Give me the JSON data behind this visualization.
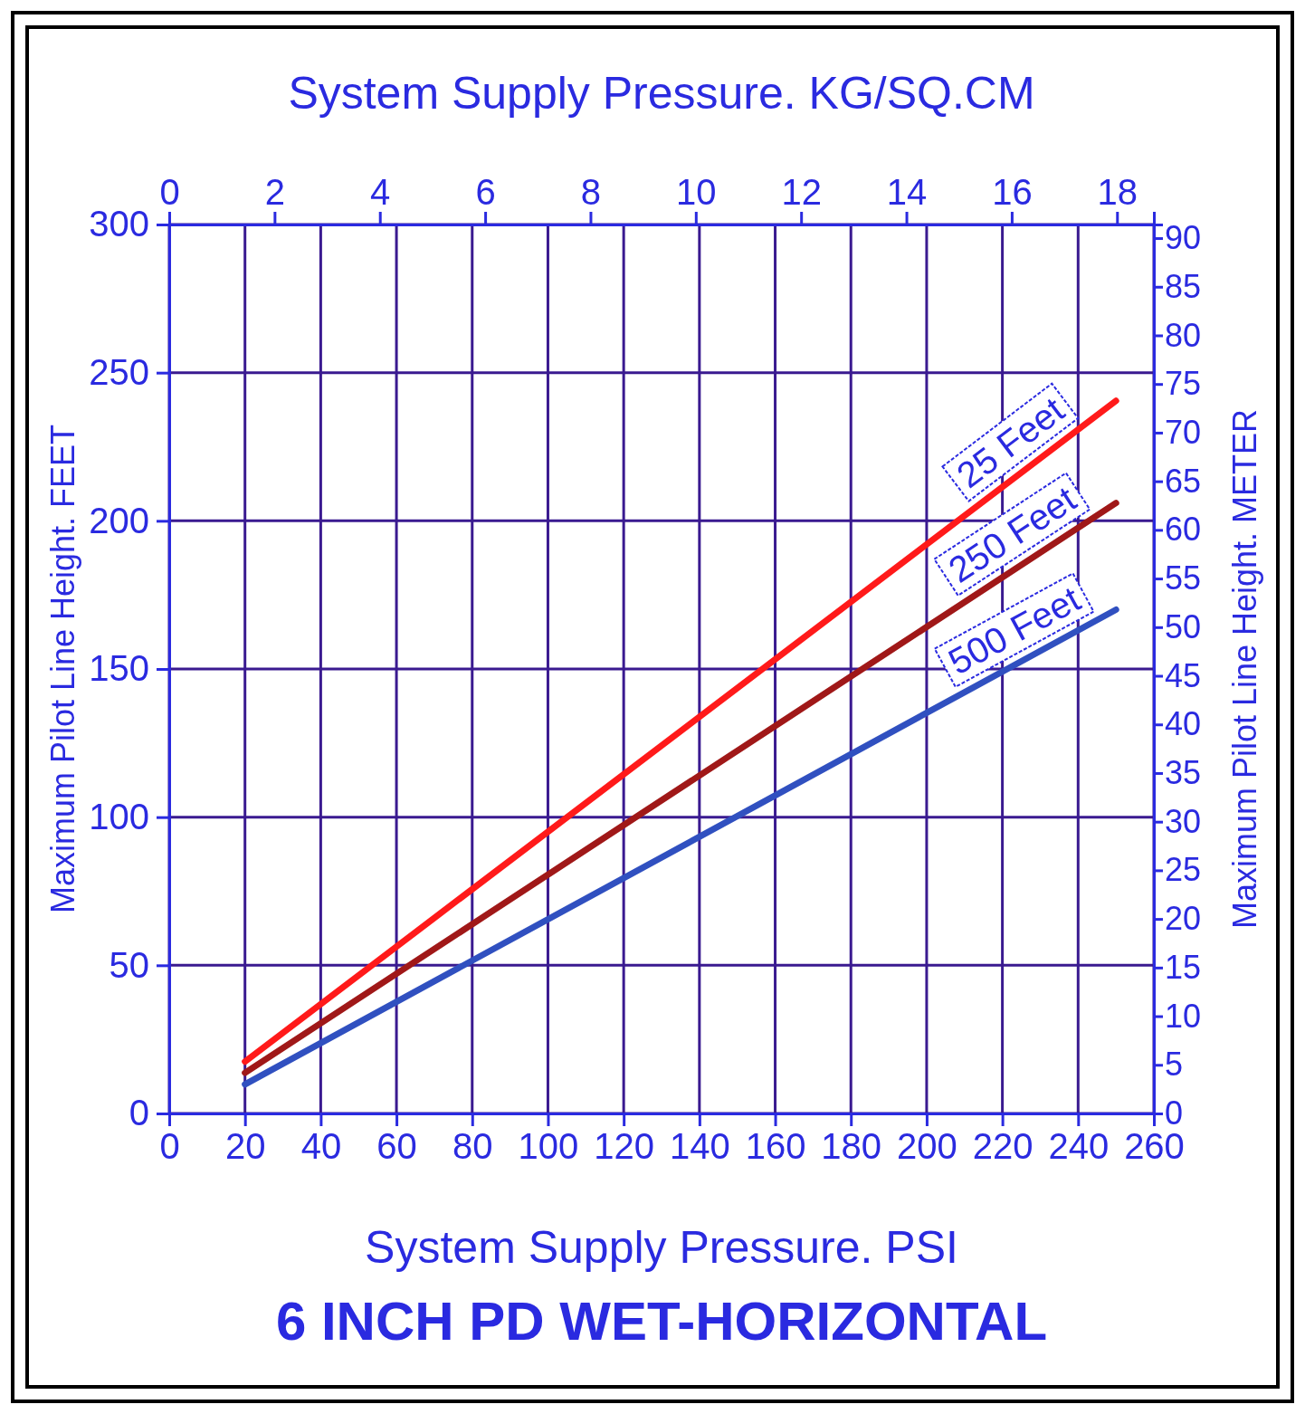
{
  "chart_data": {
    "type": "line",
    "title": "6 INCH PD WET-HORIZONTAL",
    "xlabel": "System Supply Pressure. PSI",
    "x2label": "System Supply Pressure. KG/SQ.CM",
    "ylabel": "Maximum Pilot Line Height. FEET",
    "y2label": "Maximum Pilot Line Height. METER",
    "xlim": [
      0,
      260
    ],
    "xticks": [
      0,
      20,
      40,
      60,
      80,
      100,
      120,
      140,
      160,
      180,
      200,
      220,
      240,
      260
    ],
    "x2lim": [
      0,
      18.7
    ],
    "x2ticks": [
      0,
      2,
      4,
      6,
      8,
      10,
      12,
      14,
      16,
      18
    ],
    "ylim": [
      0,
      300
    ],
    "yticks": [
      0,
      50,
      100,
      150,
      200,
      250,
      300
    ],
    "y2lim": [
      0,
      91.4
    ],
    "y2ticks": [
      0,
      5,
      10,
      15,
      20,
      25,
      30,
      35,
      40,
      45,
      50,
      55,
      60,
      65,
      70,
      75,
      80,
      85,
      90
    ],
    "grid": true,
    "legend": false,
    "marker": "none",
    "line_style": "solid",
    "x": [
      20,
      250
    ],
    "series": [
      {
        "name": "25 Feet",
        "color": "#ff1a1a",
        "values": [
          17.5,
          240.5
        ]
      },
      {
        "name": "250 Feet",
        "color": "#a01818",
        "values": [
          13.7,
          206
        ]
      },
      {
        "name": "500 Feet",
        "color": "#3050c0",
        "values": [
          9.8,
          170
        ]
      }
    ]
  }
}
